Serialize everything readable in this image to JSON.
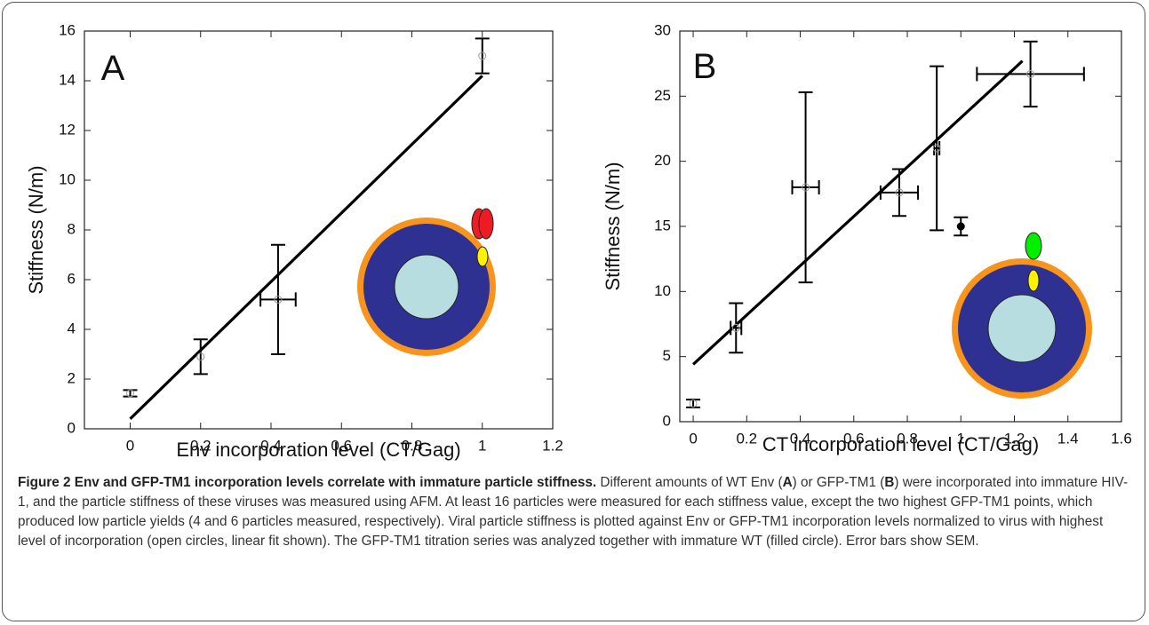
{
  "chart_data": [
    {
      "type": "scatter",
      "panel_label": "A",
      "color": "#000000",
      "xlabel": "Env incorporation level (CT/Gag)",
      "ylabel": "Stiffness (N/m)",
      "xlim": [
        -0.13,
        1.2
      ],
      "ylim": [
        0,
        16
      ],
      "xticks": [
        0,
        0.2,
        0.4,
        0.6,
        0.8,
        1,
        1.2
      ],
      "yticks": [
        0,
        2,
        4,
        6,
        8,
        10,
        12,
        14,
        16
      ],
      "points": {
        "x": [
          0,
          0.2,
          0.42,
          1.0
        ],
        "values": [
          1.43,
          2.9,
          5.2,
          15.0
        ],
        "yerr": [
          0.13,
          0.7,
          2.2,
          0.7
        ],
        "xerr": [
          null,
          null,
          0.05,
          null
        ]
      },
      "fit": {
        "x": [
          0,
          1.0
        ],
        "values": [
          0.4,
          14.2
        ]
      }
    },
    {
      "type": "scatter",
      "panel_label": "B",
      "color": "#000000",
      "xlabel": "CT incorporation level (CT/Gag)",
      "ylabel": "Stiffness (N/m)",
      "xlim": [
        -0.05,
        1.6
      ],
      "ylim": [
        0,
        30
      ],
      "xticks": [
        0,
        0.2,
        0.4,
        0.6,
        0.8,
        1,
        1.2,
        1.4,
        1.6
      ],
      "yticks": [
        0,
        5,
        10,
        15,
        20,
        25,
        30
      ],
      "points": {
        "x": [
          0,
          0.16,
          0.42,
          0.77,
          0.91,
          1.26
        ],
        "values": [
          1.4,
          7.2,
          18.0,
          17.6,
          21.0,
          26.7
        ],
        "yerr": [
          0.3,
          1.9,
          7.3,
          1.8,
          6.3,
          2.5
        ],
        "xerr": [
          null,
          0.02,
          0.05,
          0.07,
          0.01,
          0.2
        ]
      },
      "wt": {
        "x": [
          1.0
        ],
        "values": [
          15.0
        ],
        "yerr": [
          0.7
        ]
      },
      "fit": {
        "x": [
          0,
          1.23
        ],
        "values": [
          4.4,
          27.7
        ]
      }
    }
  ],
  "caption": [
    "Figure 2 Env and GFP-TM1 incorporation levels correlate with immature particle stiffness.",
    " Different amounts of WT Env (",
    "A",
    ") or GFP-TM1 (",
    "B",
    ") were incorporated into immature HIV-1, and the particle stiffness of these viruses was measured using AFM. At least 16 particles were measured for each stiffness value, except the two highest GFP-TM1 points, which produced low particle yields (4 and 6 particles measured, respectively). Viral particle stiffness is plotted against Env or GFP-TM1 incorporation levels normalized to virus with highest level of incorporation (open circles, linear fit shown). The GFP-TM1 titration series was analyzed together with immature WT (filled circle). Error bars show SEM."
  ]
}
